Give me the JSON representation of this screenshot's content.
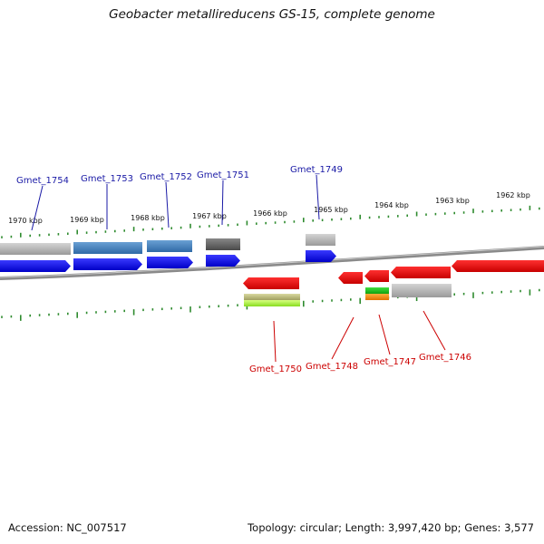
{
  "title": "Geobacter metallireducens GS-15, complete genome",
  "footer": {
    "accession": "Accession: NC_007517",
    "summary": "Topology: circular; Length: 3,997,420 bp; Genes: 3,577"
  },
  "colors": {
    "backbone": "#8a8a8a",
    "tick": "#2e8b2e",
    "forward_label": "#1a1aa6",
    "reverse_label": "#cc0000",
    "gene_blue": "#1010ee",
    "gene_red": "#ee0000",
    "feature_grey": "#b8b8b8",
    "feature_dark": "#666666",
    "feature_steelblue": "#4a86c0"
  },
  "scale": {
    "labels": [
      "1970 kbp",
      "1969 kbp",
      "1968 kbp",
      "1967 kbp",
      "1966 kbp",
      "1965 kbp",
      "1964 kbp",
      "1963 kbp",
      "1962 kbp"
    ]
  },
  "gene_labels": {
    "forward": [
      "Gmet_1754",
      "Gmet_1753",
      "Gmet_1752",
      "Gmet_1751",
      "Gmet_1749"
    ],
    "reverse": [
      "Gmet_1750",
      "Gmet_1748",
      "Gmet_1747",
      "Gmet_1746"
    ]
  }
}
